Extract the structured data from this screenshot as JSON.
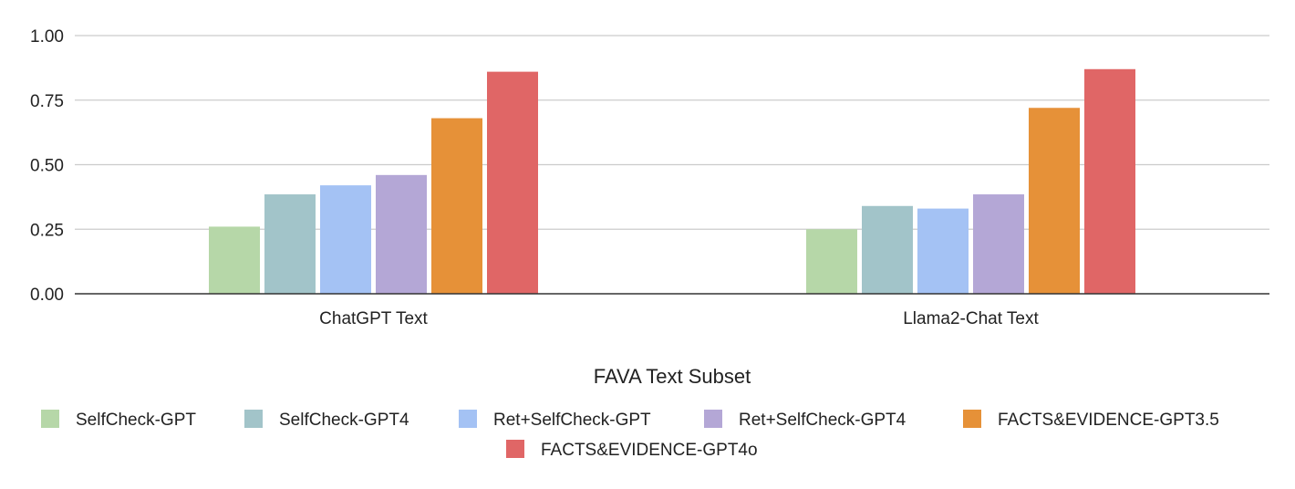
{
  "chart_data": {
    "type": "bar",
    "title": "",
    "xlabel": "FAVA Text Subset",
    "ylabel": "",
    "ylim": [
      0,
      1
    ],
    "yticks": [
      "0.00",
      "0.25",
      "0.50",
      "0.75",
      "1.00"
    ],
    "ytick_values": [
      0,
      0.25,
      0.5,
      0.75,
      1.0
    ],
    "grid": true,
    "legend_position": "bottom",
    "categories": [
      "ChatGPT Text",
      "Llama2-Chat Text"
    ],
    "series": [
      {
        "name": "SelfCheck-GPT",
        "color": "#b6d7a8",
        "values": [
          0.26,
          0.25
        ]
      },
      {
        "name": "SelfCheck-GPT4",
        "color": "#a2c4c9",
        "values": [
          0.385,
          0.34
        ]
      },
      {
        "name": "Ret+SelfCheck-GPT",
        "color": "#a4c2f4",
        "values": [
          0.42,
          0.33
        ]
      },
      {
        "name": "Ret+SelfCheck-GPT4",
        "color": "#b4a7d6",
        "values": [
          0.46,
          0.385
        ]
      },
      {
        "name": "FACTS&EVIDENCE-GPT3.5",
        "color": "#e69138",
        "values": [
          0.68,
          0.72
        ]
      },
      {
        "name": "FACTS&EVIDENCE-GPT4o",
        "color": "#e06666",
        "values": [
          0.86,
          0.87
        ]
      }
    ]
  }
}
